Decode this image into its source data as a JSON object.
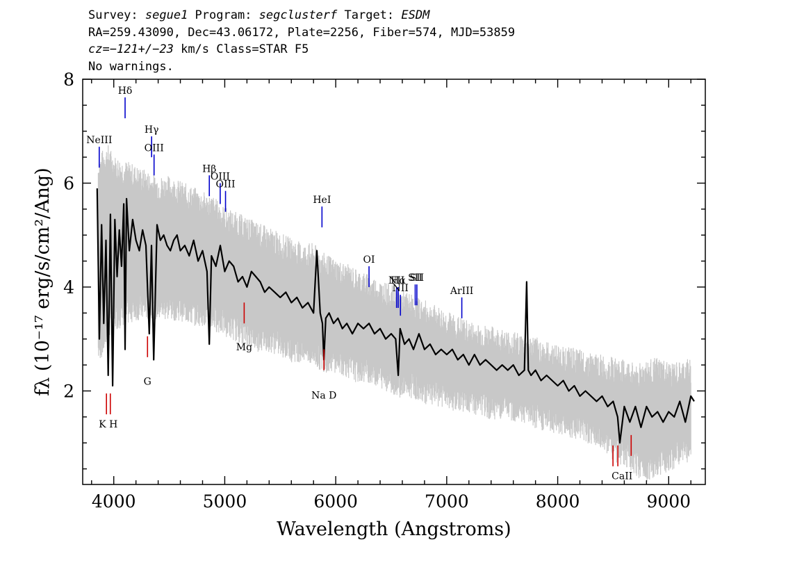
{
  "header": {
    "line1": {
      "survey_label": "Survey: ",
      "survey": "segue1",
      "program_label": " Program: ",
      "program": "segclusterf",
      "target_label": " Target: ",
      "target": "ESDM"
    },
    "line2": "RA=259.43090, Dec=43.06172, Plate=2256, Fiber=574, MJD=53859",
    "line3": {
      "cz_label": "cz=",
      "cz_value": "−121+/−23",
      "cz_rest": " km/s Class=STAR F5"
    },
    "line4": "No warnings."
  },
  "chart_data": {
    "type": "line",
    "xlabel": "Wavelength (Angstroms)",
    "ylabel": "fλ (10⁻¹⁷ erg/s/cm²/Ang)",
    "xlim": [
      3720,
      9330
    ],
    "ylim": [
      0.2,
      8.0
    ],
    "x_ticks": [
      4000,
      5000,
      6000,
      7000,
      8000,
      9000
    ],
    "y_ticks": [
      2,
      4,
      6,
      8
    ],
    "grid": false,
    "series": [
      {
        "role": "error-band",
        "color": "#c8c8c8",
        "x": [
          3860,
          3900,
          3950,
          4000,
          4100,
          4200,
          4300,
          4400,
          4500,
          4600,
          4700,
          4800,
          4900,
          5000,
          5100,
          5200,
          5300,
          5400,
          5500,
          5600,
          5700,
          5800,
          5900,
          6000,
          6100,
          6200,
          6300,
          6400,
          6500,
          6600,
          6700,
          6800,
          6900,
          7000,
          7100,
          7200,
          7300,
          7400,
          7500,
          7600,
          7700,
          7800,
          7900,
          8000,
          8100,
          8200,
          8300,
          8400,
          8500,
          8600,
          8700,
          8800,
          8900,
          9000,
          9100,
          9200
        ],
        "upper": [
          6.2,
          6.4,
          6.5,
          6.3,
          6.2,
          6.1,
          6.0,
          5.9,
          5.9,
          5.8,
          5.7,
          5.6,
          5.5,
          5.3,
          5.2,
          5.1,
          5.0,
          4.9,
          4.8,
          4.7,
          4.6,
          4.6,
          4.4,
          4.3,
          4.2,
          4.1,
          4.0,
          3.9,
          3.8,
          3.7,
          3.6,
          3.5,
          3.4,
          3.3,
          3.2,
          3.1,
          3.05,
          3.0,
          2.95,
          2.9,
          2.85,
          2.8,
          2.7,
          2.65,
          2.6,
          2.55,
          2.5,
          2.45,
          2.4,
          2.35,
          2.3,
          2.35,
          2.4,
          2.3,
          2.3,
          2.4
        ],
        "lower": [
          2.8,
          2.9,
          3.2,
          3.4,
          3.5,
          3.6,
          3.6,
          3.6,
          3.6,
          3.6,
          3.5,
          3.5,
          3.4,
          3.3,
          3.2,
          3.1,
          3.0,
          3.0,
          2.9,
          2.8,
          2.8,
          2.7,
          2.6,
          2.6,
          2.5,
          2.4,
          2.4,
          2.3,
          2.2,
          2.1,
          2.1,
          2.0,
          1.95,
          1.9,
          1.85,
          1.8,
          1.75,
          1.7,
          1.7,
          1.65,
          1.6,
          1.5,
          1.45,
          1.4,
          1.35,
          1.3,
          1.2,
          1.1,
          0.9,
          0.8,
          0.6,
          0.5,
          0.6,
          0.7,
          0.8,
          0.9
        ]
      },
      {
        "role": "flux",
        "color": "#000000",
        "x": [
          3850,
          3870,
          3890,
          3910,
          3930,
          3950,
          3970,
          3990,
          4010,
          4030,
          4050,
          4070,
          4090,
          4102,
          4115,
          4140,
          4170,
          4200,
          4230,
          4260,
          4290,
          4320,
          4340,
          4360,
          4390,
          4420,
          4450,
          4480,
          4510,
          4540,
          4570,
          4600,
          4640,
          4680,
          4720,
          4760,
          4800,
          4840,
          4861,
          4880,
          4920,
          4960,
          5000,
          5040,
          5080,
          5120,
          5160,
          5200,
          5240,
          5280,
          5320,
          5360,
          5400,
          5450,
          5500,
          5550,
          5600,
          5650,
          5700,
          5750,
          5800,
          5830,
          5860,
          5880,
          5893,
          5910,
          5940,
          5980,
          6020,
          6060,
          6100,
          6150,
          6200,
          6250,
          6300,
          6350,
          6400,
          6450,
          6500,
          6540,
          6563,
          6580,
          6620,
          6660,
          6700,
          6750,
          6800,
          6850,
          6900,
          6950,
          7000,
          7050,
          7100,
          7150,
          7200,
          7250,
          7300,
          7350,
          7400,
          7450,
          7500,
          7550,
          7600,
          7650,
          7700,
          7720,
          7735,
          7760,
          7800,
          7850,
          7900,
          7950,
          8000,
          8050,
          8100,
          8150,
          8200,
          8250,
          8300,
          8350,
          8400,
          8450,
          8500,
          8540,
          8560,
          8600,
          8650,
          8700,
          8750,
          8800,
          8850,
          8900,
          8950,
          9000,
          9050,
          9100,
          9150,
          9200,
          9230
        ],
        "y": [
          5.9,
          3.0,
          5.2,
          3.3,
          4.9,
          2.3,
          5.4,
          2.1,
          5.3,
          4.2,
          5.1,
          4.4,
          5.6,
          2.8,
          5.7,
          4.7,
          5.3,
          4.9,
          4.7,
          5.1,
          4.8,
          3.1,
          4.8,
          2.6,
          5.2,
          4.9,
          5.0,
          4.8,
          4.7,
          4.9,
          5.0,
          4.7,
          4.8,
          4.6,
          4.9,
          4.5,
          4.7,
          4.3,
          2.9,
          4.6,
          4.4,
          4.8,
          4.3,
          4.5,
          4.4,
          4.1,
          4.2,
          4.0,
          4.3,
          4.2,
          4.1,
          3.9,
          4.0,
          3.9,
          3.8,
          3.9,
          3.7,
          3.8,
          3.6,
          3.7,
          3.5,
          4.7,
          3.5,
          3.3,
          2.6,
          3.4,
          3.5,
          3.3,
          3.4,
          3.2,
          3.3,
          3.1,
          3.3,
          3.2,
          3.3,
          3.1,
          3.2,
          3.0,
          3.1,
          3.0,
          2.3,
          3.2,
          2.9,
          3.0,
          2.8,
          3.1,
          2.8,
          2.9,
          2.7,
          2.8,
          2.7,
          2.8,
          2.6,
          2.7,
          2.5,
          2.7,
          2.5,
          2.6,
          2.5,
          2.4,
          2.5,
          2.4,
          2.5,
          2.3,
          2.4,
          4.1,
          2.4,
          2.3,
          2.4,
          2.2,
          2.3,
          2.2,
          2.1,
          2.2,
          2.0,
          2.1,
          1.9,
          2.0,
          1.9,
          1.8,
          1.9,
          1.7,
          1.8,
          1.5,
          1.0,
          1.7,
          1.4,
          1.7,
          1.3,
          1.7,
          1.5,
          1.6,
          1.4,
          1.6,
          1.5,
          1.8,
          1.4,
          1.9,
          1.8
        ]
      }
    ],
    "annotations": {
      "emission": [
        {
          "label": "NeIII",
          "x": 3869,
          "y": 6.7,
          "color": "#0000cc"
        },
        {
          "label": "Hδ",
          "x": 4102,
          "y": 7.65,
          "color": "#0000cc"
        },
        {
          "label": "Hγ",
          "x": 4341,
          "y": 6.9,
          "color": "#0000cc"
        },
        {
          "label": "OIII",
          "x": 4363,
          "y": 6.55,
          "color": "#0000cc"
        },
        {
          "label": "Hβ",
          "x": 4861,
          "y": 6.15,
          "color": "#0000cc"
        },
        {
          "label": "OIII",
          "x": 4959,
          "y": 6.0,
          "color": "#0000cc"
        },
        {
          "label": "OIII",
          "x": 5007,
          "y": 5.85,
          "color": "#0000cc"
        },
        {
          "label": "HeI",
          "x": 5876,
          "y": 5.55,
          "color": "#0000cc"
        },
        {
          "label": "OI",
          "x": 6300,
          "y": 4.4,
          "color": "#0000cc"
        },
        {
          "label": "NII",
          "x": 6548,
          "y": 4.0,
          "color": "#0000cc"
        },
        {
          "label": "Hα",
          "x": 6563,
          "y": 4.0,
          "color": "#0000cc"
        },
        {
          "label": "NII",
          "x": 6583,
          "y": 3.85,
          "color": "#0000cc"
        },
        {
          "label": "SII",
          "x": 6716,
          "y": 4.05,
          "color": "#0000cc"
        },
        {
          "label": "SII",
          "x": 6731,
          "y": 4.05,
          "color": "#0000cc"
        },
        {
          "label": "ArIII",
          "x": 7136,
          "y": 3.8,
          "color": "#0000cc"
        }
      ],
      "absorption": [
        {
          "label": "K",
          "x": 3934,
          "y": 1.55,
          "color": "#cc0000"
        },
        {
          "label": "H",
          "x": 3969,
          "y": 1.55,
          "color": "#cc0000"
        },
        {
          "label": "G",
          "x": 4304,
          "y": 2.65,
          "color": "#cc0000"
        },
        {
          "label": "Mg",
          "x": 5175,
          "y": 3.3,
          "color": "#cc0000"
        },
        {
          "label": "Na  D",
          "x": 5894,
          "y": 2.4,
          "color": "#cc0000"
        },
        {
          "label": "CaII",
          "x": 8498,
          "y": 0.55,
          "color": "#cc0000"
        },
        {
          "label": "CaII",
          "x": 8542,
          "y": 0.55,
          "color": "#cc0000"
        },
        {
          "label": "CaII",
          "x": 8662,
          "y": 0.75,
          "color": "#cc0000"
        }
      ],
      "absorption_labels": [
        {
          "label": "K H",
          "x": 3950,
          "y": 1.3
        },
        {
          "label": "G",
          "x": 4304,
          "y": 2.12
        },
        {
          "label": "Mg",
          "x": 5175,
          "y": 2.78
        },
        {
          "label": "Na  D",
          "x": 5894,
          "y": 1.85
        },
        {
          "label": "CaII",
          "x": 8580,
          "y": 0.3
        }
      ]
    }
  }
}
